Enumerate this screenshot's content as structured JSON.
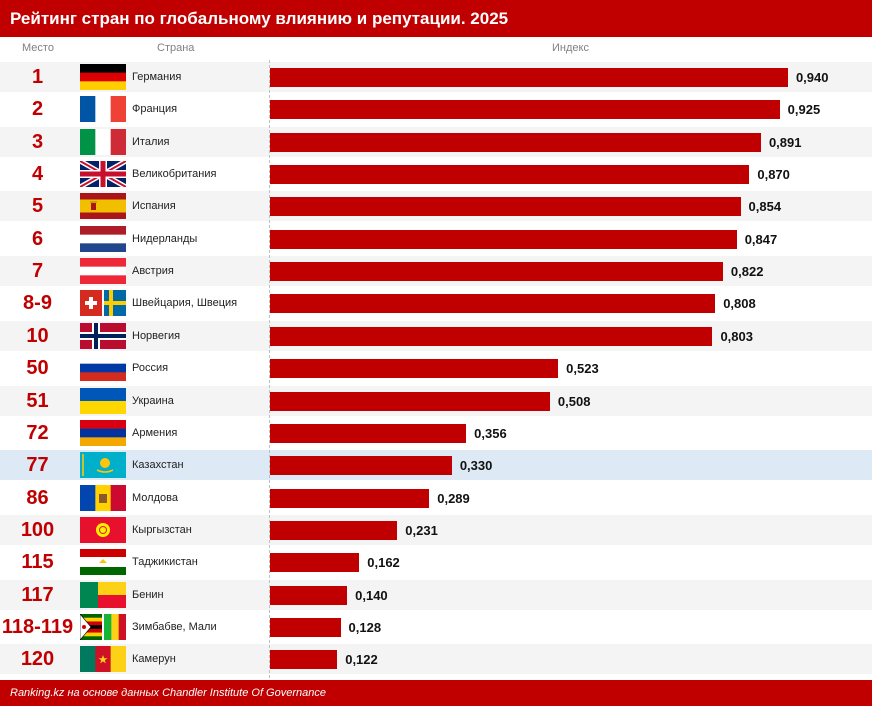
{
  "title": "Рейтинг стран по глобальному влиянию и репутации. 2025",
  "headers": {
    "rank": "Место",
    "country": "Страна",
    "index": "Индекс"
  },
  "footer": "Ranking.kz на основе данных Chandler Institute Of Governance",
  "colors": {
    "accent": "#c00000",
    "highlight_row": "#dde9f5",
    "alt_row": "#f4f4f4"
  },
  "chart_data": {
    "type": "bar",
    "orientation": "horizontal",
    "title": "Рейтинг стран по глобальному влиянию и репутации. 2025",
    "xlim": [
      0,
      1.1
    ],
    "grid": false,
    "legend": "none",
    "highlight": "Казахстан",
    "rows": [
      {
        "rank": "1",
        "country": "Германия",
        "value": 0.94,
        "label": "0,940",
        "flag": "germany-flag"
      },
      {
        "rank": "2",
        "country": "Франция",
        "value": 0.925,
        "label": "0,925",
        "flag": "france-flag"
      },
      {
        "rank": "3",
        "country": "Италия",
        "value": 0.891,
        "label": "0,891",
        "flag": "italy-flag"
      },
      {
        "rank": "4",
        "country": "Великобритания",
        "value": 0.87,
        "label": "0,870",
        "flag": "uk-flag"
      },
      {
        "rank": "5",
        "country": "Испания",
        "value": 0.854,
        "label": "0,854",
        "flag": "spain-flag"
      },
      {
        "rank": "6",
        "country": "Нидерланды",
        "value": 0.847,
        "label": "0,847",
        "flag": "netherlands-flag"
      },
      {
        "rank": "7",
        "country": "Австрия",
        "value": 0.822,
        "label": "0,822",
        "flag": "austria-flag"
      },
      {
        "rank": "8-9",
        "country": "Швейцария, Швеция",
        "value": 0.808,
        "label": "0,808",
        "flag": "switzerland-sweden-flags"
      },
      {
        "rank": "10",
        "country": "Норвегия",
        "value": 0.803,
        "label": "0,803",
        "flag": "norway-flag"
      },
      {
        "rank": "50",
        "country": "Россия",
        "value": 0.523,
        "label": "0,523",
        "flag": "russia-flag"
      },
      {
        "rank": "51",
        "country": "Украина",
        "value": 0.508,
        "label": "0,508",
        "flag": "ukraine-flag"
      },
      {
        "rank": "72",
        "country": "Армения",
        "value": 0.356,
        "label": "0,356",
        "flag": "armenia-flag"
      },
      {
        "rank": "77",
        "country": "Казахстан",
        "value": 0.33,
        "label": "0,330",
        "flag": "kazakhstan-flag"
      },
      {
        "rank": "86",
        "country": "Молдова",
        "value": 0.289,
        "label": "0,289",
        "flag": "moldova-flag"
      },
      {
        "rank": "100",
        "country": "Кыргызстан",
        "value": 0.231,
        "label": "0,231",
        "flag": "kyrgyzstan-flag"
      },
      {
        "rank": "115",
        "country": "Таджикистан",
        "value": 0.162,
        "label": "0,162",
        "flag": "tajikistan-flag"
      },
      {
        "rank": "117",
        "country": "Бенин",
        "value": 0.14,
        "label": "0,140",
        "flag": "benin-flag"
      },
      {
        "rank": "118-119",
        "country": "Зимбабве, Мали",
        "value": 0.128,
        "label": "0,128",
        "flag": "zimbabwe-mali-flags"
      },
      {
        "rank": "120",
        "country": "Камерун",
        "value": 0.122,
        "label": "0,122",
        "flag": "cameroon-flag"
      }
    ]
  }
}
